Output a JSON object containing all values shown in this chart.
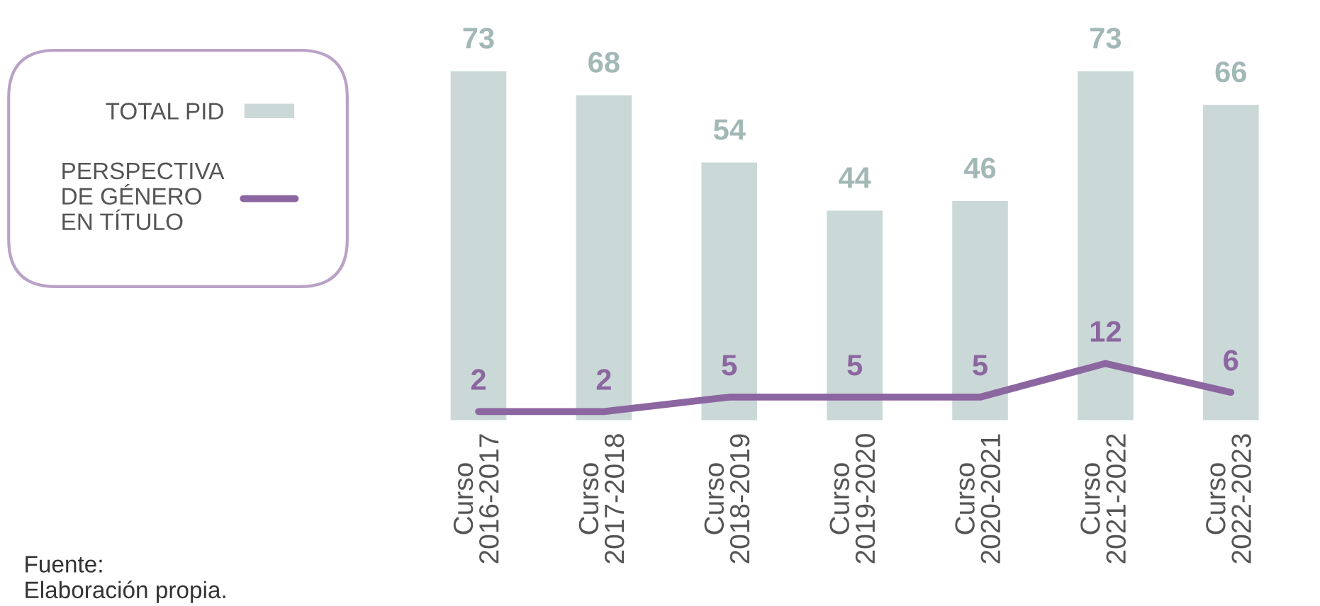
{
  "chart_data": {
    "type": "bar",
    "categories": [
      "Curso\n2016-2017",
      "Curso\n2017-2018",
      "Curso\n2018-2019",
      "Curso\n2019-2020",
      "Curso\n2020-2021",
      "Curso\n2021-2022",
      "Curso\n2022-2023"
    ],
    "series": [
      {
        "name": "TOTAL PID",
        "color": "#cad9d7",
        "values": [
          73,
          68,
          54,
          44,
          46,
          73,
          66
        ]
      },
      {
        "name": "PERSPECTIVA\nDE GÉNERO\nEN TÍTULO",
        "type": "line",
        "color": "#8c66a0",
        "values": [
          2,
          2,
          5,
          5,
          5,
          12,
          6
        ]
      }
    ],
    "data_labels": true,
    "legend": "left",
    "grid": false,
    "marker": "none",
    "line_style": "solid",
    "annotations": [
      "Fuente:\nElaboración propia."
    ]
  }
}
